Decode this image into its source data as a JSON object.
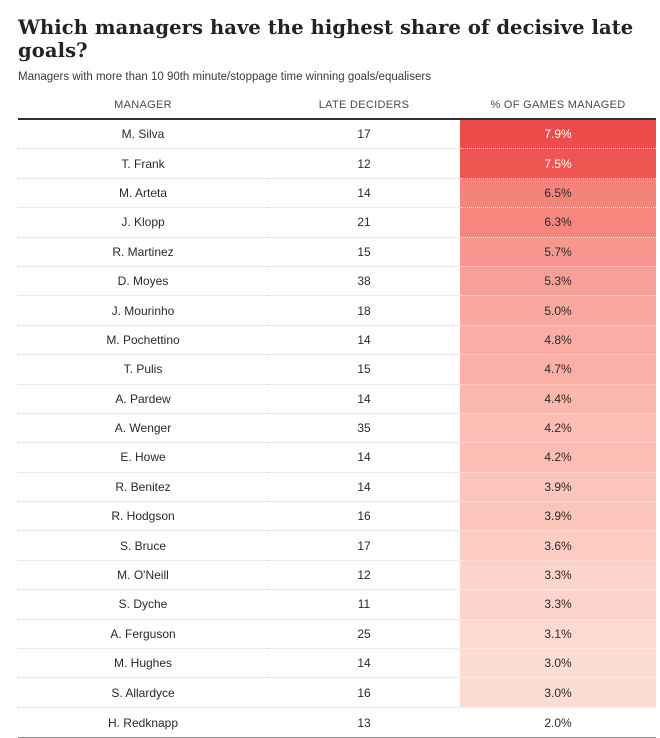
{
  "colors": {
    "accent_red": "#ee4c4a",
    "header_rule": "#2f2f2f",
    "bottom_rule": "#8f8f8f",
    "row_divider": "#d8d8d8",
    "text_dark": "#2a2a2a",
    "text_light": "#ffffff"
  },
  "chart_data": {
    "type": "table",
    "title": "Which managers have the highest share of decisive late goals?",
    "subtitle": "Managers with more than 10 90th minute/stoppage time winning goals/equalisers",
    "columns": [
      "MANAGER",
      "LATE DECIDERS",
      "% OF GAMES MANAGED"
    ],
    "value_column_note": "cells shaded from strong red (highest %) to white (lowest %)",
    "rows": [
      {
        "manager": "M. Silva",
        "late_deciders": 17,
        "pct_of_games_managed": "7.9%",
        "fill": "#ee4c4a",
        "text": "#ffffff"
      },
      {
        "manager": "T. Frank",
        "late_deciders": 12,
        "pct_of_games_managed": "7.5%",
        "fill": "#ef5551",
        "text": "#ffffff"
      },
      {
        "manager": "M. Arteta",
        "late_deciders": 14,
        "pct_of_games_managed": "6.5%",
        "fill": "#f5827b",
        "text": "#2a2a2a"
      },
      {
        "manager": "J. Klopp",
        "late_deciders": 21,
        "pct_of_games_managed": "6.3%",
        "fill": "#f6867e",
        "text": "#2a2a2a"
      },
      {
        "manager": "R. Martinez",
        "late_deciders": 15,
        "pct_of_games_managed": "5.7%",
        "fill": "#f79790",
        "text": "#2a2a2a"
      },
      {
        "manager": "D. Moyes",
        "late_deciders": 38,
        "pct_of_games_managed": "5.3%",
        "fill": "#f8a098",
        "text": "#2a2a2a"
      },
      {
        "manager": "J. Mourinho",
        "late_deciders": 18,
        "pct_of_games_managed": "5.0%",
        "fill": "#f9a8a0",
        "text": "#2a2a2a"
      },
      {
        "manager": "M. Pochettino",
        "late_deciders": 14,
        "pct_of_games_managed": "4.8%",
        "fill": "#f9ada5",
        "text": "#2a2a2a"
      },
      {
        "manager": "T. Pulis",
        "late_deciders": 15,
        "pct_of_games_managed": "4.7%",
        "fill": "#fab0a8",
        "text": "#2a2a2a"
      },
      {
        "manager": "A. Pardew",
        "late_deciders": 14,
        "pct_of_games_managed": "4.4%",
        "fill": "#fab8af",
        "text": "#2a2a2a"
      },
      {
        "manager": "A. Wenger",
        "late_deciders": 35,
        "pct_of_games_managed": "4.2%",
        "fill": "#fbbdb4",
        "text": "#2a2a2a"
      },
      {
        "manager": "E. Howe",
        "late_deciders": 14,
        "pct_of_games_managed": "4.2%",
        "fill": "#fbbdb4",
        "text": "#2a2a2a"
      },
      {
        "manager": "R. Benitez",
        "late_deciders": 14,
        "pct_of_games_managed": "3.9%",
        "fill": "#fcc5bc",
        "text": "#2a2a2a"
      },
      {
        "manager": "R. Hodgson",
        "late_deciders": 16,
        "pct_of_games_managed": "3.9%",
        "fill": "#fcc5bc",
        "text": "#2a2a2a"
      },
      {
        "manager": "S. Bruce",
        "late_deciders": 17,
        "pct_of_games_managed": "3.6%",
        "fill": "#fcccc3",
        "text": "#2a2a2a"
      },
      {
        "manager": "M. O'Neill",
        "late_deciders": 12,
        "pct_of_games_managed": "3.3%",
        "fill": "#fdd4cb",
        "text": "#2a2a2a"
      },
      {
        "manager": "S. Dyche",
        "late_deciders": 11,
        "pct_of_games_managed": "3.3%",
        "fill": "#fdd4cb",
        "text": "#2a2a2a"
      },
      {
        "manager": "A. Ferguson",
        "late_deciders": 25,
        "pct_of_games_managed": "3.1%",
        "fill": "#fdd9d1",
        "text": "#2a2a2a"
      },
      {
        "manager": "M. Hughes",
        "late_deciders": 14,
        "pct_of_games_managed": "3.0%",
        "fill": "#fddcd4",
        "text": "#2a2a2a"
      },
      {
        "manager": "S. Allardyce",
        "late_deciders": 16,
        "pct_of_games_managed": "3.0%",
        "fill": "#fddcd4",
        "text": "#2a2a2a"
      },
      {
        "manager": "H. Redknapp",
        "late_deciders": 13,
        "pct_of_games_managed": "2.0%",
        "fill": "#ffffff",
        "text": "#2a2a2a"
      }
    ]
  }
}
